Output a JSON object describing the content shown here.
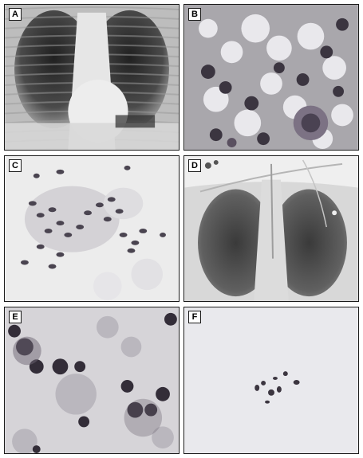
{
  "figure": {
    "panels": [
      {
        "label": "A",
        "content": "chest-xray"
      },
      {
        "label": "B",
        "content": "cytology-smear"
      },
      {
        "label": "C",
        "content": "cytology-smear"
      },
      {
        "label": "D",
        "content": "chest-xray"
      },
      {
        "label": "E",
        "content": "cytology-smear"
      },
      {
        "label": "F",
        "content": "cytology-smear"
      }
    ]
  },
  "colors": {
    "border": "#1a1a1a",
    "xray_dark": "#2a2a2a",
    "xray_light": "#e8e8e8",
    "cell_nucleus": "#3a3540",
    "cell_cytoplasm": "#c9c6cc",
    "smear_background": "#ececec"
  }
}
